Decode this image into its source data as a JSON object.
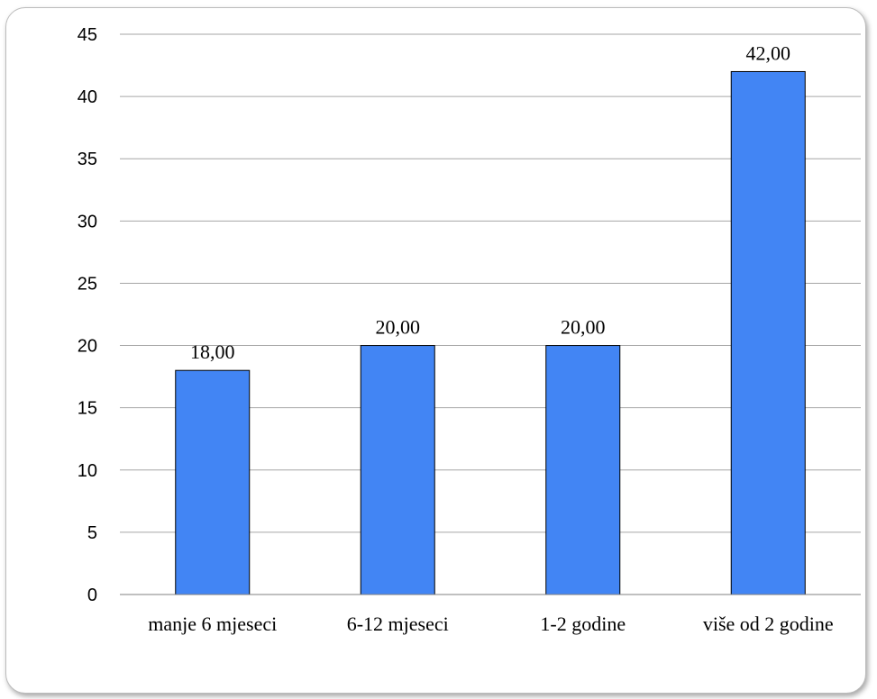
{
  "chart_data": {
    "type": "bar",
    "categories": [
      "manje 6 mjeseci",
      "6-12 mjeseci",
      "1-2 godine",
      "više od 2 godine"
    ],
    "values": [
      18,
      20,
      20,
      42
    ],
    "data_labels": [
      "18,00",
      "20,00",
      "20,00",
      "42,00"
    ],
    "title": "",
    "xlabel": "",
    "ylabel": "",
    "ylim": [
      0,
      45
    ],
    "yticks": [
      0,
      5,
      10,
      15,
      20,
      25,
      30,
      35,
      40,
      45
    ],
    "grid": true,
    "legend": "none",
    "bar_color": "#4285f4",
    "bar_edge_color": "#000000",
    "grid_color": "#a6a6a6"
  }
}
